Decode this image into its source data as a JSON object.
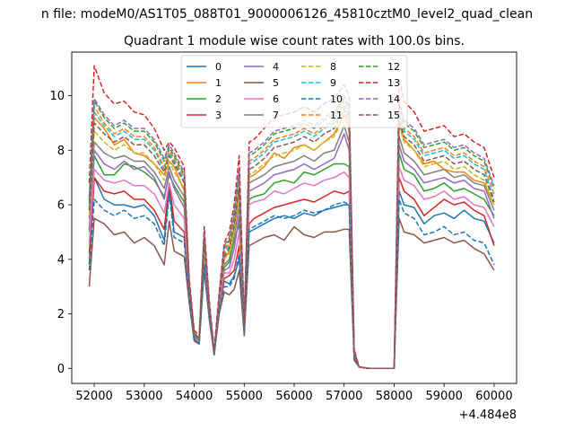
{
  "chart_data": {
    "type": "line",
    "suptitle": "n file: modeM0/AS1T05_088T01_9000006126_45810cztM0_level2_quad_clean",
    "title": "Quadrant 1 module wise count rates with 100.0s bins.",
    "xlabel": "",
    "ylabel": "",
    "x_offset_label": "+4.484e8",
    "xlim": [
      51550,
      60450
    ],
    "ylim": [
      -0.55,
      11.6
    ],
    "xticks": [
      52000,
      53000,
      54000,
      55000,
      56000,
      57000,
      58000,
      59000,
      60000
    ],
    "xtick_labels": [
      "52000",
      "53000",
      "54000",
      "55000",
      "56000",
      "57000",
      "58000",
      "59000",
      "60000"
    ],
    "yticks": [
      0,
      2,
      4,
      6,
      8,
      10
    ],
    "ytick_labels": [
      "0",
      "2",
      "4",
      "6",
      "8",
      "10"
    ],
    "grid": false,
    "legend_position": "top-center",
    "legend_columns": 4,
    "colors": [
      "#1f77b4",
      "#ff7f0e",
      "#2ca02c",
      "#d62728",
      "#9467bd",
      "#8c564b",
      "#e377c2",
      "#7f7f7f",
      "#bcbd22",
      "#17becf",
      "#1f77b4",
      "#ff7f0e",
      "#2ca02c",
      "#d62728",
      "#9467bd",
      "#8c564b"
    ],
    "dashed": [
      false,
      false,
      false,
      false,
      false,
      false,
      false,
      false,
      true,
      true,
      true,
      true,
      true,
      true,
      true,
      true
    ],
    "x": [
      51900,
      52000,
      52200,
      52400,
      52600,
      52800,
      53000,
      53200,
      53400,
      53500,
      53600,
      53800,
      53900,
      54000,
      54100,
      54200,
      54300,
      54400,
      54500,
      54600,
      54700,
      54800,
      54900,
      55000,
      55100,
      55200,
      55400,
      55600,
      55800,
      56000,
      56200,
      56400,
      56600,
      56800,
      57000,
      57100,
      57200,
      57300,
      57500,
      57700,
      57900,
      58000,
      58100,
      58200,
      58400,
      58600,
      58800,
      59000,
      59200,
      59400,
      59600,
      59800,
      60000
    ],
    "series": [
      {
        "name": "0",
        "values": [
          4.2,
          7.0,
          6.2,
          6.0,
          6.0,
          5.9,
          6.0,
          5.6,
          4.7,
          6.6,
          5.0,
          4.8,
          2.8,
          1.2,
          1.0,
          4.0,
          2.0,
          0.5,
          2.2,
          3.2,
          3.1,
          3.4,
          4.0,
          1.3,
          5.0,
          5.1,
          5.3,
          5.5,
          5.6,
          5.5,
          5.7,
          5.6,
          5.8,
          5.9,
          6.0,
          6.0,
          0.4,
          0.05,
          0.0,
          0.0,
          0.0,
          0.0,
          6.5,
          6.0,
          5.9,
          5.3,
          5.6,
          5.7,
          5.5,
          5.8,
          5.5,
          5.4,
          4.6
        ]
      },
      {
        "name": "1",
        "values": [
          5.9,
          9.2,
          8.8,
          8.2,
          8.4,
          7.9,
          7.8,
          7.5,
          7.1,
          7.6,
          7.4,
          6.5,
          3.0,
          1.3,
          1.1,
          4.6,
          2.2,
          0.6,
          2.5,
          4.0,
          4.3,
          5.2,
          6.6,
          1.5,
          7.0,
          7.1,
          7.4,
          7.9,
          7.7,
          8.1,
          8.2,
          8.0,
          8.3,
          8.6,
          9.3,
          8.8,
          0.6,
          0.05,
          0.0,
          0.0,
          0.0,
          0.0,
          9.0,
          8.4,
          8.0,
          7.5,
          7.6,
          7.3,
          7.2,
          7.2,
          6.9,
          6.8,
          6.0
        ]
      },
      {
        "name": "2",
        "values": [
          5.1,
          7.8,
          7.1,
          7.1,
          7.5,
          7.4,
          7.2,
          6.9,
          6.3,
          7.1,
          6.7,
          6.1,
          2.9,
          1.2,
          1.1,
          4.3,
          2.1,
          0.6,
          2.4,
          3.7,
          3.9,
          4.7,
          5.3,
          1.4,
          6.2,
          6.3,
          6.4,
          6.8,
          6.9,
          6.8,
          7.2,
          7.1,
          7.3,
          7.5,
          7.5,
          7.4,
          0.5,
          0.05,
          0.0,
          0.0,
          0.0,
          0.0,
          7.9,
          7.3,
          7.1,
          6.5,
          6.6,
          6.8,
          6.5,
          6.6,
          6.4,
          6.2,
          5.6
        ]
      },
      {
        "name": "3",
        "values": [
          3.8,
          7.0,
          6.5,
          6.4,
          6.5,
          6.2,
          6.2,
          5.8,
          5.1,
          6.8,
          5.4,
          5.0,
          2.7,
          1.1,
          0.9,
          3.9,
          2.0,
          0.5,
          2.3,
          3.3,
          3.4,
          3.6,
          4.5,
          1.3,
          5.3,
          5.5,
          5.7,
          5.9,
          6.0,
          6.1,
          6.2,
          6.1,
          6.3,
          6.5,
          6.4,
          6.5,
          0.4,
          0.05,
          0.0,
          0.0,
          0.0,
          0.0,
          7.0,
          6.5,
          6.2,
          5.6,
          5.9,
          6.2,
          6.0,
          6.1,
          5.8,
          5.6,
          4.5
        ]
      },
      {
        "name": "4",
        "values": [
          5.0,
          8.0,
          7.5,
          7.3,
          7.6,
          7.3,
          7.4,
          7.0,
          6.2,
          7.2,
          6.6,
          5.9,
          2.8,
          1.2,
          1.0,
          4.2,
          2.1,
          0.6,
          2.4,
          3.6,
          3.7,
          4.4,
          5.6,
          1.4,
          6.5,
          6.6,
          6.8,
          7.1,
          7.2,
          7.3,
          7.5,
          7.3,
          7.5,
          7.7,
          8.6,
          8.0,
          0.5,
          0.05,
          0.0,
          0.0,
          0.0,
          0.0,
          8.2,
          7.6,
          7.3,
          6.8,
          6.9,
          7.0,
          6.8,
          6.9,
          6.6,
          6.5,
          5.5
        ]
      },
      {
        "name": "5",
        "values": [
          3.0,
          5.5,
          5.3,
          4.9,
          5.0,
          4.6,
          4.8,
          4.5,
          3.8,
          5.4,
          4.3,
          4.1,
          2.4,
          1.0,
          0.9,
          3.6,
          1.8,
          0.5,
          2.0,
          2.8,
          2.7,
          2.9,
          3.6,
          1.2,
          4.5,
          4.6,
          4.8,
          4.9,
          4.7,
          5.2,
          4.9,
          4.8,
          5.0,
          5.0,
          5.1,
          5.1,
          0.3,
          0.05,
          0.0,
          0.0,
          0.0,
          0.0,
          5.5,
          5.0,
          4.9,
          4.6,
          4.7,
          4.8,
          4.6,
          4.7,
          4.4,
          4.2,
          3.6
        ]
      },
      {
        "name": "6",
        "values": [
          4.6,
          7.3,
          6.9,
          6.8,
          6.9,
          6.7,
          6.7,
          6.4,
          5.7,
          6.8,
          6.0,
          5.5,
          2.8,
          1.2,
          1.0,
          4.1,
          2.0,
          0.5,
          2.3,
          3.5,
          3.5,
          4.0,
          5.0,
          1.4,
          6.0,
          6.1,
          6.2,
          6.5,
          6.4,
          6.6,
          6.8,
          6.7,
          6.9,
          7.0,
          7.2,
          7.0,
          0.5,
          0.05,
          0.0,
          0.0,
          0.0,
          0.0,
          7.4,
          6.9,
          6.7,
          6.2,
          6.3,
          6.5,
          6.2,
          6.3,
          6.0,
          5.9,
          5.2
        ]
      },
      {
        "name": "7",
        "values": [
          5.5,
          8.3,
          7.9,
          7.7,
          7.8,
          7.6,
          7.6,
          7.2,
          6.6,
          7.4,
          6.9,
          6.3,
          2.9,
          1.2,
          1.0,
          4.4,
          2.1,
          0.6,
          2.4,
          3.8,
          4.0,
          4.8,
          6.0,
          1.5,
          6.8,
          6.9,
          7.1,
          7.4,
          7.5,
          7.6,
          7.8,
          7.6,
          7.9,
          8.0,
          8.9,
          8.3,
          0.5,
          0.05,
          0.0,
          0.0,
          0.0,
          0.0,
          8.5,
          7.9,
          7.6,
          7.1,
          7.2,
          7.3,
          7.0,
          7.1,
          6.8,
          6.7,
          5.8
        ]
      },
      {
        "name": "8",
        "values": [
          5.6,
          8.7,
          8.3,
          8.0,
          8.2,
          7.9,
          7.9,
          7.5,
          6.9,
          7.6,
          7.2,
          6.6,
          3.0,
          1.3,
          1.1,
          4.6,
          2.2,
          0.6,
          2.5,
          4.0,
          4.2,
          5.0,
          6.3,
          1.5,
          7.1,
          7.2,
          7.5,
          7.8,
          7.9,
          8.0,
          8.2,
          8.0,
          8.3,
          8.5,
          9.2,
          8.7,
          0.6,
          0.05,
          0.0,
          0.0,
          0.0,
          0.0,
          8.9,
          8.3,
          8.0,
          7.4,
          7.5,
          7.6,
          7.3,
          7.4,
          7.1,
          6.9,
          6.0
        ]
      },
      {
        "name": "9",
        "values": [
          6.0,
          9.4,
          8.9,
          8.5,
          8.7,
          8.4,
          8.4,
          8.0,
          7.3,
          7.9,
          7.6,
          6.9,
          3.1,
          1.3,
          1.1,
          4.8,
          2.3,
          0.6,
          2.6,
          4.2,
          4.5,
          5.4,
          6.8,
          1.6,
          7.5,
          7.6,
          7.9,
          8.3,
          8.4,
          8.5,
          8.7,
          8.5,
          8.8,
          9.0,
          9.6,
          9.2,
          0.6,
          0.05,
          0.0,
          0.0,
          0.0,
          0.0,
          9.3,
          8.7,
          8.4,
          7.8,
          7.9,
          8.0,
          7.7,
          7.8,
          7.5,
          7.3,
          6.2
        ]
      },
      {
        "name": "10",
        "values": [
          3.6,
          6.2,
          5.8,
          5.6,
          5.8,
          5.5,
          5.6,
          5.3,
          4.5,
          6.4,
          4.8,
          4.6,
          2.6,
          1.1,
          0.9,
          3.8,
          1.9,
          0.5,
          2.1,
          3.0,
          3.0,
          3.3,
          4.2,
          1.3,
          5.1,
          5.2,
          5.4,
          5.6,
          5.5,
          5.6,
          5.8,
          5.7,
          5.8,
          6.0,
          6.1,
          6.0,
          0.4,
          0.05,
          0.0,
          0.0,
          0.0,
          0.0,
          6.2,
          5.7,
          5.5,
          4.9,
          5.0,
          5.2,
          4.9,
          5.0,
          4.7,
          4.6,
          3.8
        ]
      },
      {
        "name": "11",
        "values": [
          6.1,
          9.6,
          9.0,
          8.6,
          8.8,
          8.5,
          8.5,
          8.1,
          7.4,
          8.0,
          7.7,
          7.0,
          3.1,
          1.3,
          1.1,
          4.9,
          2.3,
          0.6,
          2.6,
          4.3,
          4.6,
          5.5,
          7.0,
          1.6,
          7.6,
          7.7,
          8.0,
          8.4,
          8.5,
          8.6,
          8.8,
          8.6,
          8.9,
          9.1,
          9.8,
          9.3,
          0.6,
          0.05,
          0.0,
          0.0,
          0.0,
          0.0,
          9.5,
          8.8,
          8.5,
          7.9,
          8.0,
          8.1,
          7.8,
          7.9,
          7.6,
          7.4,
          6.4
        ]
      },
      {
        "name": "12",
        "values": [
          6.2,
          9.8,
          9.2,
          8.8,
          9.0,
          8.7,
          8.7,
          8.3,
          7.6,
          8.1,
          7.8,
          7.1,
          3.2,
          1.3,
          1.1,
          5.0,
          2.4,
          0.6,
          2.7,
          4.4,
          4.7,
          5.6,
          7.2,
          1.6,
          7.8,
          7.9,
          8.2,
          8.6,
          8.7,
          8.8,
          9.0,
          8.8,
          9.1,
          9.3,
          9.9,
          9.5,
          0.6,
          0.05,
          0.0,
          0.0,
          0.0,
          0.0,
          9.7,
          9.0,
          8.7,
          8.1,
          8.2,
          8.3,
          8.0,
          8.1,
          7.8,
          7.6,
          6.6
        ]
      },
      {
        "name": "13",
        "values": [
          6.8,
          11.1,
          10.1,
          9.7,
          9.8,
          9.4,
          9.3,
          8.8,
          8.0,
          8.3,
          8.1,
          7.4,
          3.3,
          1.4,
          1.2,
          5.2,
          2.5,
          0.7,
          2.8,
          4.6,
          5.0,
          6.0,
          7.8,
          1.7,
          8.3,
          8.4,
          8.8,
          9.2,
          9.3,
          9.4,
          9.6,
          9.4,
          9.7,
          9.9,
          10.4,
          10.0,
          0.7,
          0.05,
          0.0,
          0.0,
          0.0,
          0.0,
          10.6,
          9.8,
          9.4,
          8.7,
          8.8,
          8.9,
          8.5,
          8.6,
          8.3,
          8.1,
          7.0
        ]
      },
      {
        "name": "14",
        "values": [
          6.3,
          9.9,
          9.3,
          8.9,
          9.1,
          8.8,
          8.8,
          8.4,
          7.7,
          8.2,
          7.9,
          7.2,
          3.2,
          1.3,
          1.1,
          5.0,
          2.4,
          0.6,
          2.7,
          4.5,
          4.8,
          5.7,
          7.3,
          1.6,
          7.9,
          8.0,
          8.3,
          8.7,
          8.8,
          8.9,
          9.1,
          8.9,
          9.2,
          9.4,
          10.0,
          9.6,
          0.6,
          0.05,
          0.0,
          0.0,
          0.0,
          0.0,
          9.8,
          9.1,
          8.8,
          8.2,
          8.3,
          8.4,
          8.1,
          8.2,
          7.9,
          7.7,
          6.7
        ]
      },
      {
        "name": "15",
        "values": [
          5.8,
          9.0,
          8.6,
          8.3,
          8.5,
          8.2,
          8.2,
          7.8,
          7.2,
          7.8,
          7.5,
          6.8,
          3.0,
          1.3,
          1.1,
          4.7,
          2.2,
          0.6,
          2.5,
          4.1,
          4.4,
          5.2,
          6.6,
          1.5,
          7.3,
          7.4,
          7.7,
          8.1,
          8.2,
          8.3,
          8.5,
          8.3,
          8.6,
          8.8,
          9.5,
          9.0,
          0.6,
          0.05,
          0.0,
          0.0,
          0.0,
          0.0,
          9.1,
          8.5,
          8.2,
          7.6,
          7.7,
          7.8,
          7.5,
          7.6,
          7.3,
          7.1,
          6.1
        ]
      }
    ]
  }
}
